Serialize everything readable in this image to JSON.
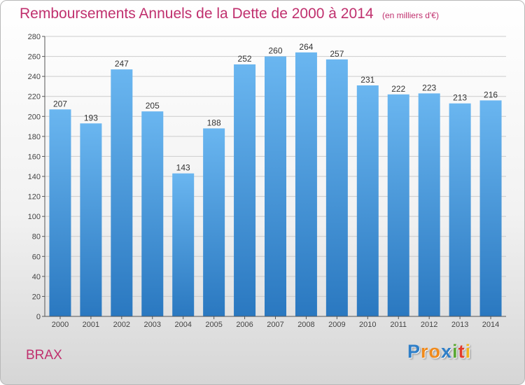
{
  "chart_data": {
    "type": "bar",
    "title": "Remboursements Annuels de la Dette de 2000 à 2014",
    "unit": "(en milliers d'€)",
    "categories": [
      "2000",
      "2001",
      "2002",
      "2003",
      "2004",
      "2005",
      "2006",
      "2007",
      "2008",
      "2009",
      "2010",
      "2011",
      "2012",
      "2013",
      "2014"
    ],
    "values": [
      207,
      193,
      247,
      205,
      143,
      188,
      252,
      260,
      264,
      257,
      231,
      222,
      223,
      213,
      216
    ],
    "ylim": [
      0,
      280
    ],
    "yticks": [
      0,
      20,
      40,
      60,
      80,
      100,
      120,
      140,
      160,
      180,
      200,
      220,
      240,
      260,
      280
    ],
    "grid": true,
    "bar_color": "#3a8fd6"
  },
  "commune": "BRAX",
  "logo": {
    "letters": [
      "P",
      "r",
      "o",
      "x",
      "i",
      "t",
      "i"
    ],
    "colors": [
      "#2f7fc8",
      "#f08a1c",
      "#f08a1c",
      "#2f7fc8",
      "#5aa832",
      "#e23b2b",
      "#f0b21c"
    ]
  }
}
